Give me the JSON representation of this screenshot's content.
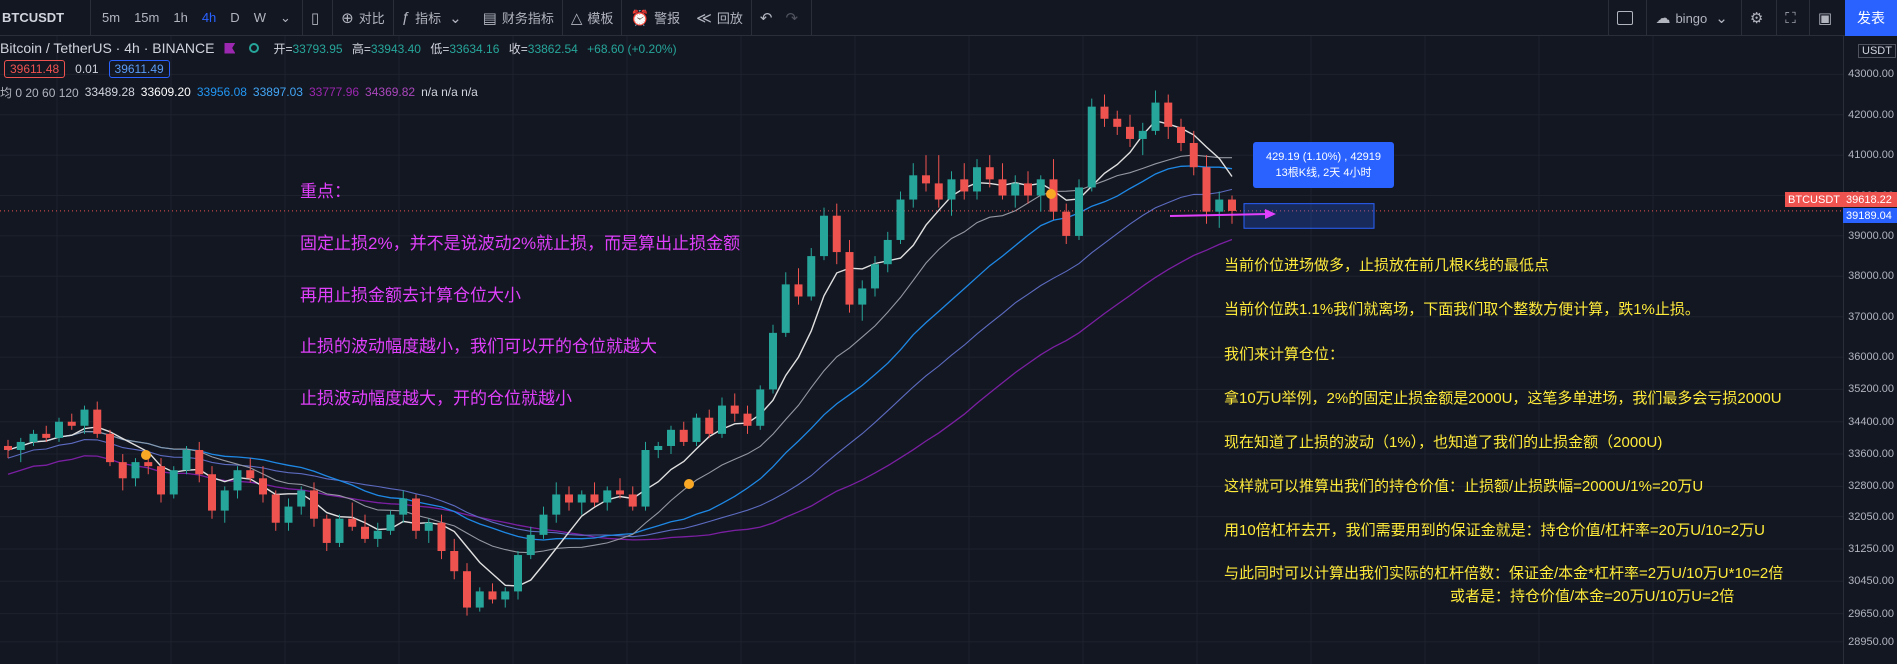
{
  "toolbar": {
    "symbol": "BTCUSDT",
    "timeframes": [
      "5m",
      "15m",
      "1h",
      "4h",
      "D",
      "W"
    ],
    "active_timeframe": "4h",
    "compare_label": "对比",
    "indicators_label": "指标",
    "financials_label": "财务指标",
    "templates_label": "模板",
    "alert_label": "警报",
    "replay_label": "回放",
    "user_label": "bingo",
    "publish_label": "发表"
  },
  "legend": {
    "title": "Bitcoin / TetherUS · 4h · BINANCE",
    "open_label": "开=",
    "open": "33793.95",
    "high_label": "高=",
    "high": "33943.40",
    "low_label": "低=",
    "low": "33634.16",
    "close_label": "收=",
    "close": "33862.54",
    "change": "+68.60 (+0.20%)",
    "bid": "39611.48",
    "spread": "0.01",
    "ask": "39611.49",
    "ma_label": "均 0 20 60 120",
    "ma_values": [
      "33489.28",
      "33609.20",
      "33956.08",
      "33897.03",
      "33777.96",
      "34369.82"
    ],
    "ma_na": "n/a  n/a  n/a"
  },
  "notes_pink": [
    "重点：",
    "固定止损2%，并不是说波动2%就止损，而是算出止损金额",
    "再用止损金额去计算仓位大小",
    "止损的波动幅度越小，我们可以开的仓位就越大",
    "止损波动幅度越大，开的仓位就越小"
  ],
  "notes_yellow": [
    "当前价位进场做多，止损放在前几根K线的最低点",
    "当前价位跌1.1%我们就离场，下面我们取个整数方便计算，跌1%止损。",
    "我们来计算仓位：",
    "拿10万U举例，2%的固定止损金额是2000U，这笔多单进场，我们最多会亏损2000U",
    "现在知道了止损的波动（1%），也知道了我们的止损金额（2000U)",
    "这样就可以推算出我们的持仓价值：止损额/止损跌幅=2000U/1%=20万U",
    "用10倍杠杆去开，我们需要用到的保证金就是：持仓价值/杠杆率=20万U/10=2万U",
    "与此同时可以计算出我们实际的杠杆倍数：保证金/本金*杠杆率=2万U/10万U*10=2倍",
    "或者是：持仓价值/本金=20万U/10万U=2倍"
  ],
  "tooltip": {
    "line1": "429.19 (1.10%) , 42919",
    "line2": "13根K线, 2天 4小时"
  },
  "axis": {
    "currency": "USDT",
    "ticks": [
      "43000.00",
      "42000.00",
      "41000.00",
      "40000.00",
      "39000.00",
      "38000.00",
      "37000.00",
      "36000.00",
      "35200.00",
      "34400.00",
      "33600.00",
      "32800.00",
      "32050.00",
      "31250.00",
      "30450.00",
      "29650.00",
      "28950.00"
    ],
    "symbol_tag": "BTCUSDT",
    "price_tag": "39618.22",
    "stop_tag": "39189.04"
  },
  "chart_data": {
    "type": "candlestick",
    "symbol": "BTCUSDT",
    "interval": "4h",
    "ylim": [
      28700,
      43800
    ],
    "current_price": 39618.22,
    "stop_price": 39189.04,
    "colors": {
      "up": "#26a69a",
      "down": "#ef5350",
      "ma20": "#ffffff",
      "ma60": "#2196f3",
      "ma120": "#9c27b0"
    },
    "candles": [
      [
        33800,
        33950,
        33500,
        33700
      ],
      [
        33700,
        34000,
        33400,
        33900
      ],
      [
        33900,
        34200,
        33800,
        34100
      ],
      [
        34100,
        34300,
        33900,
        34000
      ],
      [
        34000,
        34500,
        33900,
        34400
      ],
      [
        34400,
        34600,
        34200,
        34300
      ],
      [
        34300,
        34800,
        34100,
        34700
      ],
      [
        34700,
        34900,
        34000,
        34100
      ],
      [
        34100,
        34200,
        33300,
        33400
      ],
      [
        33400,
        33600,
        32700,
        33000
      ],
      [
        33000,
        33500,
        32800,
        33400
      ],
      [
        33400,
        33600,
        33100,
        33300
      ],
      [
        33300,
        33500,
        32400,
        32600
      ],
      [
        32600,
        33300,
        32500,
        33200
      ],
      [
        33200,
        33800,
        33100,
        33700
      ],
      [
        33700,
        33900,
        32900,
        33100
      ],
      [
        33100,
        33300,
        32000,
        32200
      ],
      [
        32200,
        32800,
        31900,
        32700
      ],
      [
        32700,
        33300,
        32500,
        33200
      ],
      [
        33200,
        33500,
        32900,
        33000
      ],
      [
        33000,
        33300,
        32400,
        32600
      ],
      [
        32600,
        32700,
        31700,
        31900
      ],
      [
        31900,
        32500,
        31700,
        32300
      ],
      [
        32300,
        32800,
        32100,
        32700
      ],
      [
        32700,
        32900,
        31800,
        32000
      ],
      [
        32000,
        32100,
        31200,
        31400
      ],
      [
        31400,
        32100,
        31300,
        32000
      ],
      [
        32000,
        32400,
        31700,
        31800
      ],
      [
        31800,
        32100,
        31400,
        31500
      ],
      [
        31500,
        31900,
        31300,
        31700
      ],
      [
        31700,
        32200,
        31600,
        32100
      ],
      [
        32100,
        32700,
        31900,
        32500
      ],
      [
        32500,
        32600,
        31500,
        31700
      ],
      [
        31700,
        32000,
        31400,
        31900
      ],
      [
        31900,
        32100,
        31000,
        31200
      ],
      [
        31200,
        31500,
        30500,
        30700
      ],
      [
        30700,
        30900,
        29600,
        29800
      ],
      [
        29800,
        30300,
        29700,
        30200
      ],
      [
        30200,
        30400,
        29900,
        30000
      ],
      [
        30000,
        30300,
        29800,
        30200
      ],
      [
        30200,
        31200,
        30000,
        31100
      ],
      [
        31100,
        31800,
        31000,
        31600
      ],
      [
        31600,
        32300,
        31500,
        32100
      ],
      [
        32100,
        32900,
        31900,
        32600
      ],
      [
        32600,
        32800,
        32200,
        32400
      ],
      [
        32400,
        32700,
        32100,
        32600
      ],
      [
        32600,
        32900,
        32300,
        32400
      ],
      [
        32400,
        32800,
        32200,
        32700
      ],
      [
        32700,
        33000,
        32500,
        32600
      ],
      [
        32600,
        32800,
        32200,
        32300
      ],
      [
        32300,
        33900,
        32200,
        33700
      ],
      [
        33700,
        33900,
        33500,
        33800
      ],
      [
        33800,
        34300,
        33600,
        34200
      ],
      [
        34200,
        34400,
        33800,
        33900
      ],
      [
        33900,
        34600,
        33800,
        34500
      ],
      [
        34500,
        34700,
        34000,
        34100
      ],
      [
        34100,
        35000,
        34000,
        34800
      ],
      [
        34800,
        35100,
        34400,
        34600
      ],
      [
        34600,
        34800,
        34100,
        34300
      ],
      [
        34300,
        35300,
        34200,
        35200
      ],
      [
        35200,
        36800,
        35100,
        36600
      ],
      [
        36600,
        38100,
        36500,
        37800
      ],
      [
        37800,
        38200,
        37300,
        37500
      ],
      [
        37500,
        38700,
        37400,
        38500
      ],
      [
        38500,
        39700,
        38400,
        39500
      ],
      [
        39500,
        39800,
        38300,
        38600
      ],
      [
        38600,
        38900,
        37100,
        37300
      ],
      [
        37300,
        37900,
        36900,
        37700
      ],
      [
        37700,
        38500,
        37500,
        38300
      ],
      [
        38300,
        39100,
        38100,
        38900
      ],
      [
        38900,
        40100,
        38800,
        39900
      ],
      [
        39900,
        40800,
        39700,
        40500
      ],
      [
        40500,
        41000,
        40100,
        40300
      ],
      [
        40300,
        41000,
        39700,
        39900
      ],
      [
        39900,
        40600,
        39500,
        40400
      ],
      [
        40400,
        40800,
        39900,
        40100
      ],
      [
        40100,
        40900,
        39900,
        40700
      ],
      [
        40700,
        41000,
        40200,
        40400
      ],
      [
        40400,
        40800,
        39900,
        40000
      ],
      [
        40000,
        40500,
        39700,
        40300
      ],
      [
        40300,
        40600,
        39800,
        40000
      ],
      [
        40000,
        40500,
        39600,
        40400
      ],
      [
        40400,
        40900,
        39400,
        39600
      ],
      [
        39600,
        39800,
        38800,
        39000
      ],
      [
        39000,
        40400,
        38900,
        40200
      ],
      [
        40200,
        42400,
        40100,
        42200
      ],
      [
        42200,
        42500,
        41700,
        41900
      ],
      [
        41900,
        42100,
        41500,
        41700
      ],
      [
        41700,
        42000,
        41200,
        41400
      ],
      [
        41400,
        41800,
        41000,
        41600
      ],
      [
        41600,
        42600,
        41500,
        42300
      ],
      [
        42300,
        42500,
        41400,
        41700
      ],
      [
        41700,
        41900,
        41100,
        41300
      ],
      [
        41300,
        41600,
        40500,
        40700
      ],
      [
        40700,
        41000,
        39300,
        39600
      ],
      [
        39600,
        40100,
        39200,
        39900
      ],
      [
        39900,
        40000,
        39300,
        39618
      ]
    ]
  }
}
